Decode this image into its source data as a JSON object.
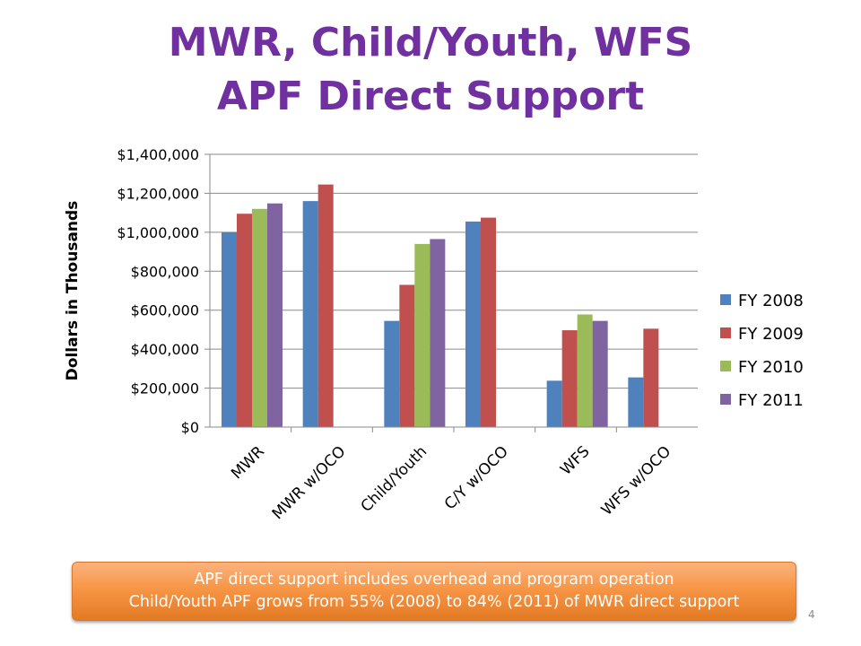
{
  "slide": {
    "title_line1": "MWR, Child/Youth, WFS",
    "title_line2": "APF Direct Support",
    "callout_line1": "APF direct support includes overhead and program operation",
    "callout_line2": "Child/Youth APF grows from 55% (2008) to 84% (2011) of MWR direct support",
    "page_number": "4"
  },
  "chart_data": {
    "type": "bar",
    "title": "",
    "xlabel": "",
    "ylabel": "Dollars in Thousands",
    "ylim": [
      0,
      1400000
    ],
    "yticks": [
      {
        "value": 0,
        "label": "$0"
      },
      {
        "value": 200000,
        "label": "$200,000"
      },
      {
        "value": 400000,
        "label": "$400,000"
      },
      {
        "value": 600000,
        "label": "$600,000"
      },
      {
        "value": 800000,
        "label": "$800,000"
      },
      {
        "value": 1000000,
        "label": "$1,000,000"
      },
      {
        "value": 1200000,
        "label": "$1,200,000"
      },
      {
        "value": 1400000,
        "label": "$1,400,000"
      }
    ],
    "grid": true,
    "legend": "right",
    "categories": [
      "MWR",
      "MWR w/OCO",
      "Child/Youth",
      "C/Y w/OCO",
      "WFS",
      "WFS w/OCO"
    ],
    "series": [
      {
        "name": "FY 2008",
        "color": "#4F81BD",
        "values": [
          1000000,
          1160000,
          545000,
          1055000,
          238000,
          255000
        ]
      },
      {
        "name": "FY 2009",
        "color": "#C0504D",
        "values": [
          1095000,
          1245000,
          730000,
          1075000,
          497000,
          505000
        ]
      },
      {
        "name": "FY 2010",
        "color": "#9BBB59",
        "values": [
          1120000,
          null,
          940000,
          null,
          578000,
          null
        ]
      },
      {
        "name": "FY 2011",
        "color": "#8064A2",
        "values": [
          1148000,
          null,
          965000,
          null,
          545000,
          null
        ]
      }
    ]
  }
}
